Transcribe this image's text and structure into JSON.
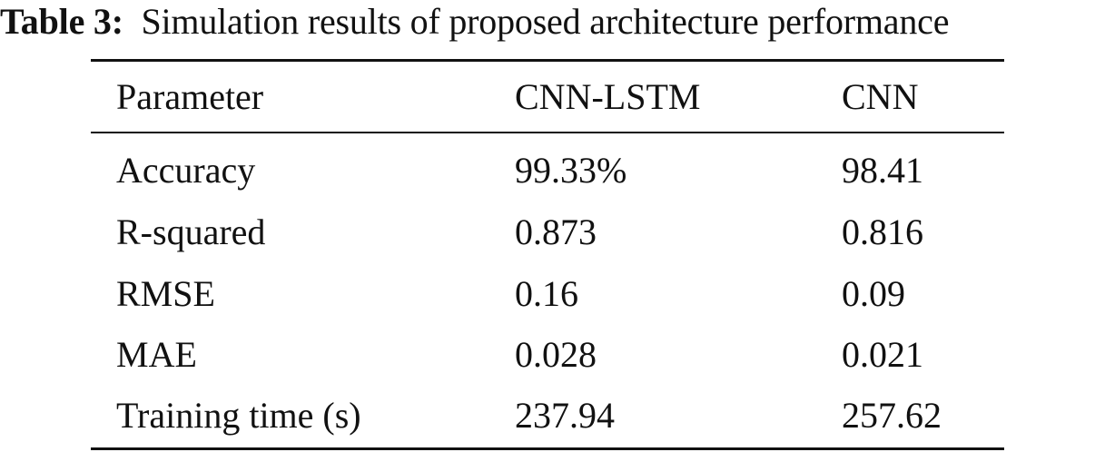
{
  "caption": {
    "label": "Table 3:",
    "text": "Simulation results of proposed architecture performance"
  },
  "table": {
    "headers": [
      "Parameter",
      "CNN-LSTM",
      "CNN"
    ],
    "rows": [
      [
        "Accuracy",
        "99.33%",
        "98.41"
      ],
      [
        "R-squared",
        "0.873",
        "0.816"
      ],
      [
        "RMSE",
        "0.16",
        "0.09"
      ],
      [
        "MAE",
        "0.028",
        "0.021"
      ],
      [
        "Training time (s)",
        "237.94",
        "257.62"
      ]
    ]
  }
}
